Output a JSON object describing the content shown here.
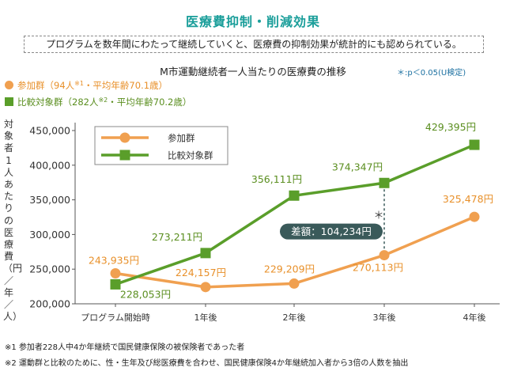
{
  "header": {
    "title": "医療費抑制・削減効果",
    "subtitle": "プログラムを数年間にわたって継続していくと、医療費の抑制効果が統計的にも認められている。"
  },
  "chart_data": {
    "type": "line",
    "title": "M市運動継続者一人当たりの医療費の推移",
    "significance_note": "＊:p＜0.05(U検定)",
    "legend_top": {
      "group1": {
        "name": "参加群",
        "detail_pre": "（94人",
        "sup": "※1",
        "detail_post": "・平均年齢70.1歳）"
      },
      "group2": {
        "name": "比較対象群",
        "detail_pre": "（282人",
        "sup": "※2",
        "detail_post": "・平均年齢70.2歳）"
      }
    },
    "legend_box": [
      "参加群",
      "比較対象群"
    ],
    "ylabel": "対象者1人あたりの医療費（円／年／人）",
    "categories": [
      "プログラム開始時",
      "1年後",
      "2年後",
      "3年後",
      "4年後"
    ],
    "y_ticks": [
      "200,000",
      "250,000",
      "300,000",
      "350,000",
      "400,000",
      "450,000"
    ],
    "ylim": [
      200000,
      450000
    ],
    "grid": false,
    "series": [
      {
        "name": "参加群",
        "color": "#f0a050",
        "label_color": "#e8902a",
        "marker": "circle",
        "values": [
          243935,
          224157,
          229209,
          270113,
          325478
        ],
        "labels": [
          "243,935円",
          "224,157円",
          "229,209円",
          "270,113円",
          "325,478円"
        ]
      },
      {
        "name": "比較対象群",
        "color": "#5a9e2a",
        "label_color": "#5a8e1f",
        "marker": "square",
        "values": [
          228053,
          273211,
          356111,
          374347,
          429395
        ],
        "labels": [
          "228,053円",
          "273,211円",
          "356,111円",
          "374,347円",
          "429,395円"
        ]
      }
    ],
    "annotation": {
      "text": "差額：104,234円",
      "star": "＊",
      "category_index": 3,
      "bg_color": "#3a5a5a"
    }
  },
  "footnotes": [
    "※1  参加者228人中4か年継続で国民健康保険の被保険者であった者",
    "※2  運動群と比較のために、性・生年及び総医療費を合わせ、国民健康保険4か年継続加入者から3倍の人数を抽出"
  ]
}
